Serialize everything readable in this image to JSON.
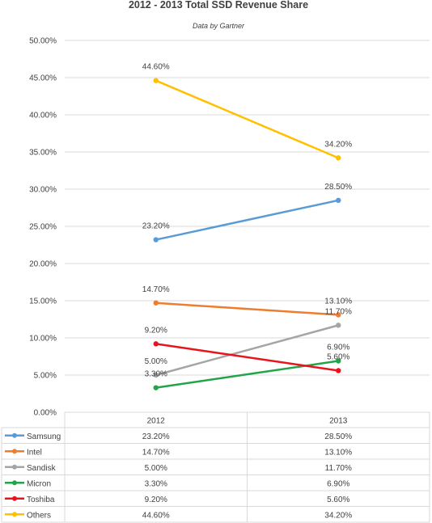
{
  "chart_data": {
    "type": "line",
    "title": "2012 - 2013 Total SSD Revenue Share",
    "subtitle": "Data by Gartner",
    "categories": [
      "2012",
      "2013"
    ],
    "ylim": [
      0,
      50
    ],
    "y_tick_labels": [
      "0.00%",
      "5.00%",
      "10.00%",
      "15.00%",
      "20.00%",
      "25.00%",
      "30.00%",
      "35.00%",
      "40.00%",
      "45.00%",
      "50.00%"
    ],
    "grid": true,
    "legend": "data-table",
    "series": [
      {
        "name": "Samsung",
        "color": "#5b9bd5",
        "values": [
          23.2,
          28.5
        ],
        "labels": [
          "23.20%",
          "28.50%"
        ]
      },
      {
        "name": "Intel",
        "color": "#ed7d31",
        "values": [
          14.7,
          13.1
        ],
        "labels": [
          "14.70%",
          "13.10%"
        ]
      },
      {
        "name": "Sandisk",
        "color": "#a5a5a5",
        "values": [
          5.0,
          11.7
        ],
        "labels": [
          "5.00%",
          "11.70%"
        ]
      },
      {
        "name": "Micron",
        "color": "#22a44a",
        "values": [
          3.3,
          6.9
        ],
        "labels": [
          "3.30%",
          "6.90%"
        ]
      },
      {
        "name": "Toshiba",
        "color": "#e8141c",
        "values": [
          9.2,
          5.6
        ],
        "labels": [
          "9.20%",
          "5.60%"
        ]
      },
      {
        "name": "Others",
        "color": "#ffc000",
        "values": [
          44.6,
          34.2
        ],
        "labels": [
          "44.60%",
          "34.20%"
        ]
      }
    ]
  }
}
